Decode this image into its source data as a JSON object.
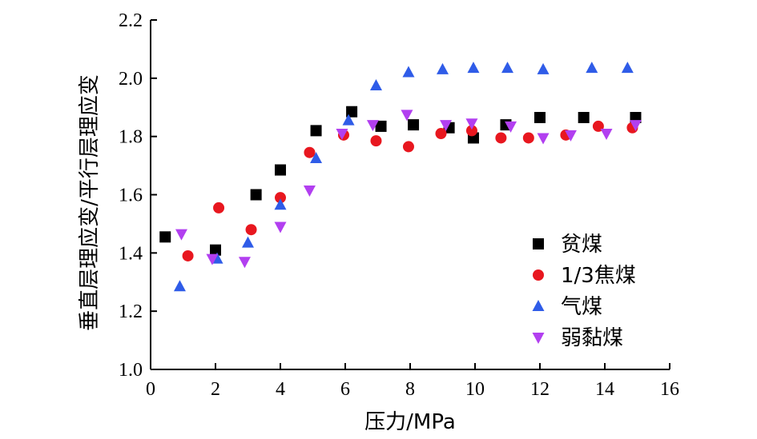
{
  "chart_data": {
    "type": "scatter",
    "xlabel": "压力/MPa",
    "ylabel": "垂直层理应变/平行层理应变",
    "xlim": [
      0,
      16
    ],
    "ylim": [
      1.0,
      2.2
    ],
    "xticks": [
      0,
      2,
      4,
      6,
      8,
      10,
      12,
      14,
      16
    ],
    "yticks": [
      1.0,
      1.2,
      1.4,
      1.6,
      1.8,
      2.0,
      2.2
    ],
    "grid": false,
    "legend_position": "bottom-right",
    "series": [
      {
        "name": "贫煤",
        "marker": "square",
        "color": "#000000",
        "x": [
          0.45,
          2.0,
          3.25,
          4.0,
          5.1,
          6.2,
          7.1,
          8.1,
          9.2,
          9.95,
          10.95,
          12.0,
          13.35,
          14.95
        ],
        "y": [
          1.455,
          1.41,
          1.6,
          1.685,
          1.82,
          1.885,
          1.835,
          1.84,
          1.83,
          1.795,
          1.84,
          1.865,
          1.865,
          1.865
        ]
      },
      {
        "name": "1/3焦煤",
        "marker": "circle",
        "color": "#e8171f",
        "x": [
          1.15,
          2.1,
          3.1,
          4.0,
          4.9,
          5.95,
          6.95,
          7.95,
          8.95,
          9.9,
          10.8,
          11.65,
          12.8,
          13.8,
          14.85
        ],
        "y": [
          1.39,
          1.555,
          1.48,
          1.59,
          1.745,
          1.805,
          1.785,
          1.765,
          1.81,
          1.82,
          1.795,
          1.795,
          1.805,
          1.835,
          1.83
        ]
      },
      {
        "name": "气煤",
        "marker": "triangle-up",
        "color": "#2f5ce8",
        "x": [
          0.9,
          2.05,
          3.0,
          4.0,
          5.1,
          6.1,
          6.95,
          7.95,
          9.0,
          9.95,
          11.0,
          12.1,
          13.6,
          14.7
        ],
        "y": [
          1.285,
          1.38,
          1.435,
          1.565,
          1.725,
          1.855,
          1.975,
          2.02,
          2.03,
          2.035,
          2.035,
          2.03,
          2.035,
          2.035
        ]
      },
      {
        "name": "弱黏煤",
        "marker": "triangle-down",
        "color": "#b23ff0",
        "x": [
          0.95,
          1.9,
          2.9,
          4.0,
          4.9,
          5.9,
          6.85,
          7.9,
          9.1,
          9.9,
          11.1,
          12.1,
          12.95,
          14.05,
          14.95
        ],
        "y": [
          1.465,
          1.38,
          1.37,
          1.49,
          1.615,
          1.81,
          1.84,
          1.875,
          1.84,
          1.845,
          1.835,
          1.795,
          1.805,
          1.81,
          1.84
        ]
      }
    ]
  }
}
